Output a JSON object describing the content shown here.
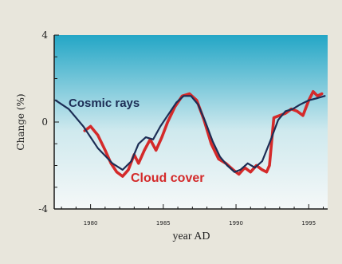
{
  "colors": {
    "background": "#e8e6dc",
    "sky_top": "#23a6c6",
    "sky_bottom": "#f5f8f8",
    "cosmic": "#1c2d55",
    "cloud": "#d42a2a",
    "axis": "#1a1a1a"
  },
  "chart_data": {
    "type": "line",
    "title": "",
    "xlabel": "year  AD",
    "ylabel": "Change (%)",
    "xlim": [
      1977.5,
      1996.3
    ],
    "ylim": [
      -4,
      4
    ],
    "x_ticks": [
      1980,
      1985,
      1990,
      1995
    ],
    "x_tick_labels": [
      "1980",
      "1985",
      "1990",
      "1995"
    ],
    "y_ticks": [
      4,
      0,
      -4
    ],
    "y_tick_labels": [
      "4",
      "0",
      "-4"
    ],
    "grid": false,
    "legend": "labels placed on lines",
    "series": [
      {
        "name": "Cosmic rays",
        "color": "#1c2d55",
        "x": [
          1977.6,
          1978.5,
          1979.5,
          1980.5,
          1981.5,
          1982.2,
          1982.8,
          1983.3,
          1983.8,
          1984.3,
          1984.8,
          1985.3,
          1985.9,
          1986.4,
          1986.9,
          1987.4,
          1987.9,
          1988.4,
          1988.9,
          1989.4,
          1989.9,
          1990.3,
          1990.8,
          1991.3,
          1991.8,
          1992.4,
          1992.9,
          1993.4,
          1993.9,
          1994.4,
          1995.0,
          1995.6,
          1996.1
        ],
        "y": [
          1.0,
          0.6,
          -0.2,
          -1.2,
          -1.9,
          -2.2,
          -1.8,
          -1.0,
          -0.7,
          -0.8,
          -0.2,
          0.3,
          0.9,
          1.2,
          1.2,
          0.8,
          0.0,
          -0.9,
          -1.6,
          -2.0,
          -2.3,
          -2.2,
          -1.9,
          -2.1,
          -1.8,
          -0.8,
          0.1,
          0.5,
          0.6,
          0.8,
          1.0,
          1.1,
          1.2
        ]
      },
      {
        "name": "Cloud cover",
        "color": "#d42a2a",
        "x": [
          1979.6,
          1980.0,
          1980.5,
          1981.0,
          1981.4,
          1981.8,
          1982.2,
          1982.6,
          1983.0,
          1983.3,
          1983.7,
          1984.1,
          1984.5,
          1984.9,
          1985.3,
          1985.8,
          1986.3,
          1986.8,
          1987.3,
          1987.8,
          1988.3,
          1988.8,
          1989.3,
          1989.8,
          1990.2,
          1990.6,
          1991.0,
          1991.4,
          1991.8,
          1992.1,
          1992.3,
          1992.6,
          1993.0,
          1993.4,
          1993.8,
          1994.2,
          1994.6,
          1995.0,
          1995.3,
          1995.6,
          1995.9
        ],
        "y": [
          -0.4,
          -0.2,
          -0.6,
          -1.3,
          -1.9,
          -2.3,
          -2.5,
          -2.2,
          -1.5,
          -1.9,
          -1.3,
          -0.8,
          -1.3,
          -0.7,
          0.0,
          0.7,
          1.2,
          1.3,
          1.0,
          0.1,
          -1.0,
          -1.7,
          -1.9,
          -2.2,
          -2.4,
          -2.1,
          -2.3,
          -2.0,
          -2.2,
          -2.3,
          -2.0,
          0.2,
          0.3,
          0.4,
          0.6,
          0.5,
          0.3,
          1.0,
          1.4,
          1.2,
          1.3
        ]
      }
    ],
    "annotations": [
      {
        "text": "Cosmic rays",
        "series": "Cosmic rays"
      },
      {
        "text": "Cloud cover",
        "series": "Cloud cover"
      }
    ]
  }
}
